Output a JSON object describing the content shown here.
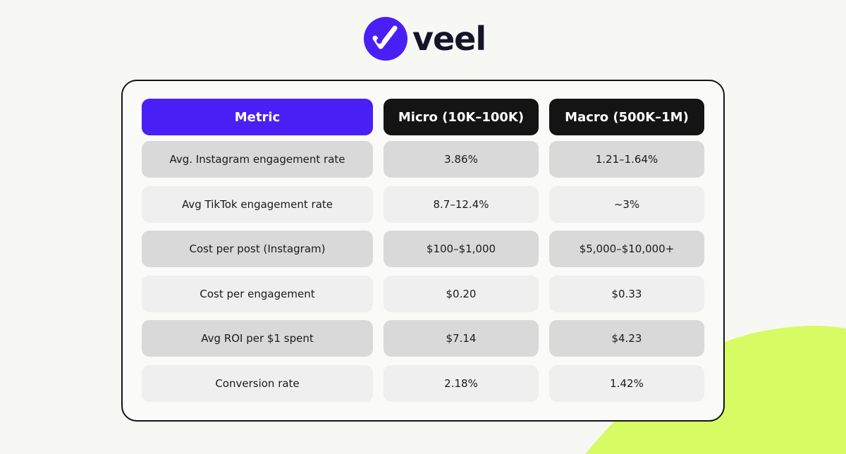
{
  "brand": "veel",
  "table": {
    "header": [
      "Metric",
      "Micro (10K–100K)",
      "Macro (500K–1M)"
    ],
    "rows": [
      [
        "Avg. Instagram engagement rate",
        "3.86%",
        "1.21–1.64%"
      ],
      [
        "Avg TikTok engagement rate",
        "8.7–12.4%",
        "~3%"
      ],
      [
        "Cost per post (Instagram)",
        "$100–$1,000",
        "$5,000–$10,000+"
      ],
      [
        "Cost per engagement",
        "$0.20",
        "$0.33"
      ],
      [
        "Avg ROI per $1 spent",
        "$7.14",
        "$4.23"
      ],
      [
        "Conversion rate",
        "2.18%",
        "1.42%"
      ]
    ]
  }
}
